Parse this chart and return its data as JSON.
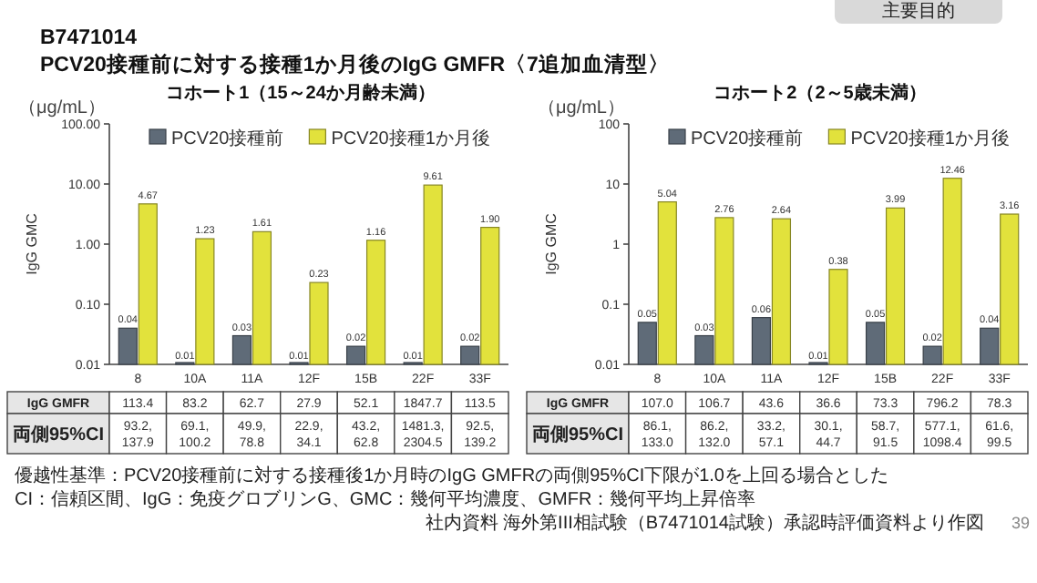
{
  "chart_data": [
    {
      "type": "other",
      "title": "B7471014",
      "subtitle": "PCV20接種前に対する接種1か月後のIgG GMFR〈7追加血清型〉",
      "annotations": [
        "主要目的",
        "優越性基準：PCV20接種前に対する接種後1か月時のIgG GMFRの両側95%CI下限が1.0を上回る場合とした",
        "CI：信頼区間、IgG：免疫グロブリンG、GMC：幾何平均濃度、GMFR：幾何平均上昇倍率",
        "社内資料 海外第III相試験（B7471014試験）承認時評価資料より作図",
        "39"
      ]
    },
    {
      "type": "bar",
      "title": "コホート1（15～24か月齢未満）",
      "ylabel": "IgG GMC",
      "log": true,
      "legend": "top",
      "categories": [
        "8",
        "10A",
        "11A",
        "12F",
        "15B",
        "22F",
        "33F"
      ],
      "ylim": [
        0.01,
        100
      ],
      "yticks": [
        {
          "value": 0.01,
          "label": "0.01"
        },
        {
          "value": 0.1,
          "label": "0.10"
        },
        {
          "value": 1,
          "label": "1.00"
        },
        {
          "value": 10,
          "label": "10.00"
        },
        {
          "value": 100,
          "label": "100.00"
        }
      ],
      "series": [
        {
          "name": "PCV20接種前",
          "color": "#5f6b78",
          "values": [
            0.04,
            0.01,
            0.03,
            0.01,
            0.02,
            0.01,
            0.02
          ],
          "value_labels": [
            "0.04",
            "0.01",
            "0.03",
            "0.01",
            "0.02",
            "0.01",
            "0.02"
          ]
        },
        {
          "name": "PCV20接種1か月後",
          "color": "#e2e23c",
          "values": [
            4.67,
            1.23,
            1.61,
            0.23,
            1.16,
            9.61,
            1.9
          ],
          "value_labels": [
            "4.67",
            "1.23",
            "1.61",
            "0.23",
            "1.16",
            "9.61",
            "1.90"
          ]
        }
      ],
      "annotations": [
        "（μg/mL）",
        "IgG GMFR",
        "113.4",
        "83.2",
        "62.7",
        "27.9",
        "52.1",
        "1847.7",
        "113.5",
        "両側95%CI",
        "93.2, 137.9",
        "69.1, 100.2",
        "49.9, 78.8",
        "22.9, 34.1",
        "43.2, 62.8",
        "1481.3, 2304.5",
        "92.5, 139.2"
      ]
    },
    {
      "type": "bar",
      "title": "コホート2（2～5歳未満）",
      "ylabel": "IgG GMC",
      "log": true,
      "legend": "top",
      "categories": [
        "8",
        "10A",
        "11A",
        "12F",
        "15B",
        "22F",
        "33F"
      ],
      "ylim": [
        0.01,
        100
      ],
      "yticks": [
        0.01,
        0.1,
        1,
        10,
        100
      ],
      "series": [
        {
          "name": "PCV20接種前",
          "color": "#5f6b78",
          "values": [
            0.05,
            0.03,
            0.06,
            0.01,
            0.05,
            0.02,
            0.04
          ],
          "value_labels": [
            "0.05",
            "0.03",
            "0.06",
            "0.01",
            "0.05",
            "0.02",
            "0.04"
          ]
        },
        {
          "name": "PCV20接種1か月後",
          "color": "#e2e23c",
          "values": [
            5.04,
            2.76,
            2.64,
            0.38,
            3.99,
            12.46,
            3.16
          ],
          "value_labels": [
            "5.04",
            "2.76",
            "2.64",
            "0.38",
            "3.99",
            "12.46",
            "3.16"
          ]
        }
      ],
      "annotations": [
        "（μg/mL）",
        "IgG GMFR",
        "107.0",
        "106.7",
        "43.6",
        "36.6",
        "73.3",
        "796.2",
        "78.3",
        "両側95%CI",
        "86.1, 133.0",
        "86.2, 132.0",
        "33.2, 57.1",
        "30.1, 44.7",
        "58.7, 91.5",
        "577.1, 1098.4",
        "61.6, 99.5"
      ]
    }
  ]
}
